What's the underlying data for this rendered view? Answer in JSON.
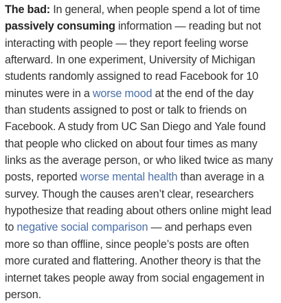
{
  "paragraph": {
    "lead": "The bad:",
    "t1": " In general, when people spend a lot of time ",
    "bold1": "passively consuming",
    "t2": " information — reading but not interacting with people — they report feeling worse afterward. In one experiment, University of Michigan students randomly assigned to read Facebook for 10 minutes were in a ",
    "link1": "worse mood",
    "t3": " at the end of the day than students assigned to post or talk to friends on Facebook. A study from UC San Diego and Yale found that people who clicked on about four times as many links as the average person, or who liked twice as many posts, reported ",
    "link2": "worse mental health",
    "t4": " than average in a survey. Though the causes aren’t clear, researchers hypothesize that reading about others online might lead to ",
    "link3": "negative social comparison",
    "t5": " — and perhaps even more so than offline, since people’s posts are often more curated and flattering. Another theory is that the internet takes people away from social engagement in person."
  },
  "colors": {
    "text": "#333333",
    "link": "#4a6fa5",
    "background": "#ffffff"
  }
}
